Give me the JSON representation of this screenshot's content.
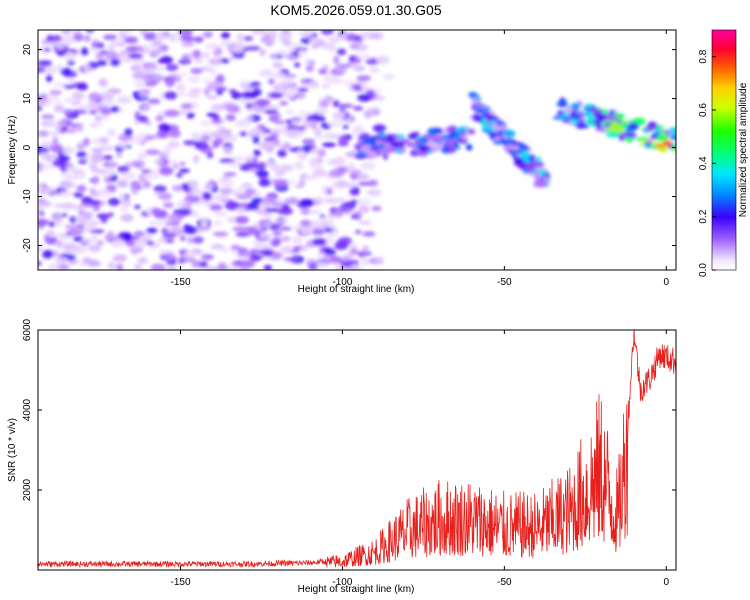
{
  "title": "KOM5.2026.059.01.30.G05",
  "chart_data": [
    {
      "type": "heatmap",
      "name": "spectrogram",
      "xlabel": "Height of straight line (km)",
      "ylabel": "Frequency (Hz)",
      "xlim": [
        -194,
        3
      ],
      "ylim": [
        -25,
        24
      ],
      "xticks": [
        -150,
        -100,
        -50,
        0
      ],
      "yticks": [
        -20,
        -10,
        0,
        10,
        20
      ],
      "colorbar": {
        "label": "Normalized spectral amplitude",
        "range": [
          0.0,
          0.9
        ],
        "ticks": [
          0.0,
          0.2,
          0.4,
          0.6,
          0.8
        ]
      },
      "noise_region": {
        "x": [
          -194,
          -95
        ],
        "y": [
          -25,
          24
        ],
        "amplitude": [
          0.03,
          0.2
        ]
      },
      "tracks": [
        {
          "x_start": -95,
          "x_end": -60,
          "y_start": 0,
          "y_end": 2,
          "peak_amplitude": 0.28
        },
        {
          "x_start": -60,
          "x_end": -37,
          "y_start": 9,
          "y_end": -7,
          "peak_amplitude": 0.32
        },
        {
          "x_start": -33,
          "x_end": 3,
          "y_start": 8,
          "y_end": 1,
          "peak_amplitude": 0.9
        }
      ]
    },
    {
      "type": "line",
      "name": "snr",
      "xlabel": "Height of straight line (km)",
      "ylabel": "SNR (10 * v/v)",
      "xlim": [
        -194,
        3
      ],
      "ylim": [
        0,
        6000
      ],
      "xticks": [
        -150,
        -100,
        -50,
        0
      ],
      "yticks": [
        2000,
        4000,
        6000
      ],
      "color": "#e8201c",
      "series": [
        {
          "name": "SNR",
          "x": [
            -194,
            -160,
            -130,
            -110,
            -100,
            -90,
            -80,
            -70,
            -60,
            -50,
            -40,
            -30,
            -20,
            -15,
            -12,
            -10,
            -8,
            -5,
            -2,
            3
          ],
          "y": [
            150,
            150,
            150,
            180,
            250,
            500,
            1100,
            1400,
            1400,
            1200,
            1200,
            1600,
            2800,
            1500,
            3500,
            6000,
            4500,
            4800,
            5400,
            5200
          ]
        }
      ]
    }
  ]
}
